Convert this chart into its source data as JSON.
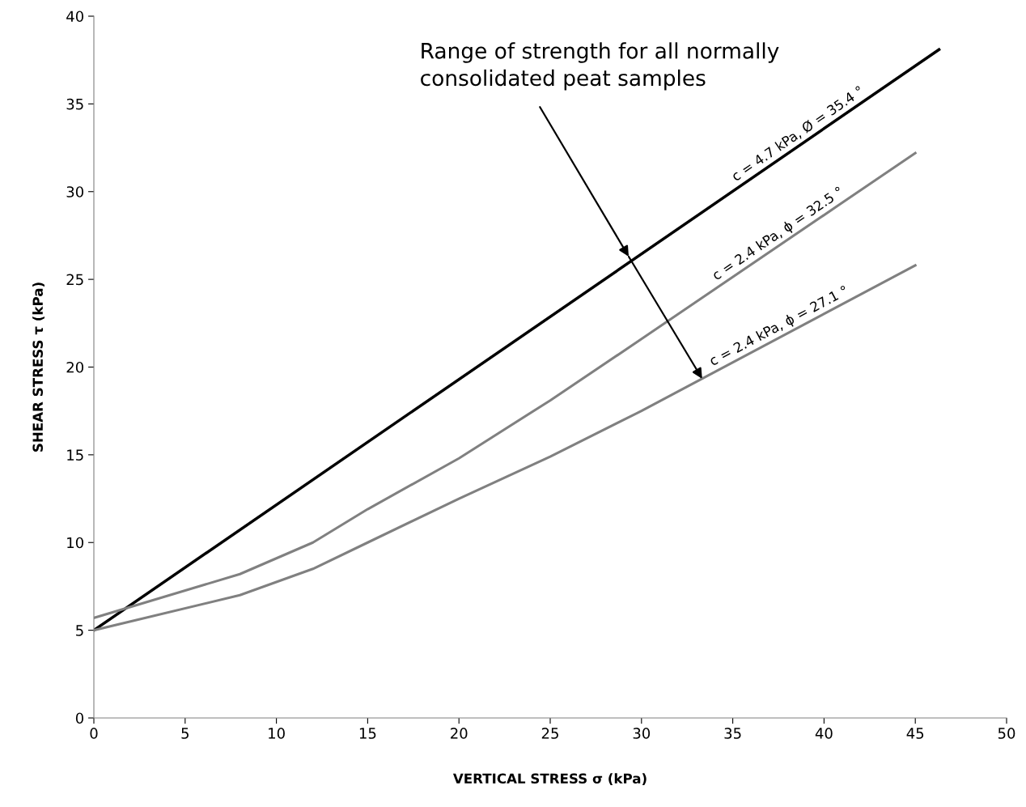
{
  "chart_data": {
    "type": "line",
    "xlabel": "VERTICAL STRESS σ (kPa)",
    "ylabel": "SHEAR STRESS τ (kPa)",
    "xlim": [
      0,
      50
    ],
    "xticks": [
      0,
      5,
      10,
      15,
      20,
      25,
      30,
      35,
      40,
      45,
      50
    ],
    "ylim": [
      0,
      40
    ],
    "yticks": [
      0,
      5,
      10,
      15,
      20,
      25,
      30,
      35,
      40
    ],
    "grid": false,
    "legend": false,
    "marker": "none",
    "line_style": "solid",
    "series": [
      {
        "name": "c = 4.7 kPa, Ø = 35.4 °",
        "color": "#000000",
        "x": [
          0,
          46.3
        ],
        "values": [
          5,
          38.1
        ]
      },
      {
        "name": "c = 2.4 kPa, ϕ = 32.5 °",
        "color": "#808080",
        "x": [
          0,
          8,
          12,
          15,
          20,
          25,
          30,
          45
        ],
        "values": [
          5.7,
          8.2,
          10.0,
          11.9,
          14.8,
          18.1,
          21.6,
          32.2
        ]
      },
      {
        "name": "c = 2.4 kPa, ϕ = 27.1 °",
        "color": "#808080",
        "x": [
          0,
          8,
          12,
          15,
          20,
          25,
          30,
          45
        ],
        "values": [
          5,
          7.0,
          8.5,
          10.0,
          12.5,
          14.9,
          17.5,
          25.8
        ]
      }
    ],
    "annotations": [
      {
        "text": "Range of strength for all normally\nconsolidated peat samples",
        "x": 29.3,
        "y": 26.3
      }
    ]
  }
}
